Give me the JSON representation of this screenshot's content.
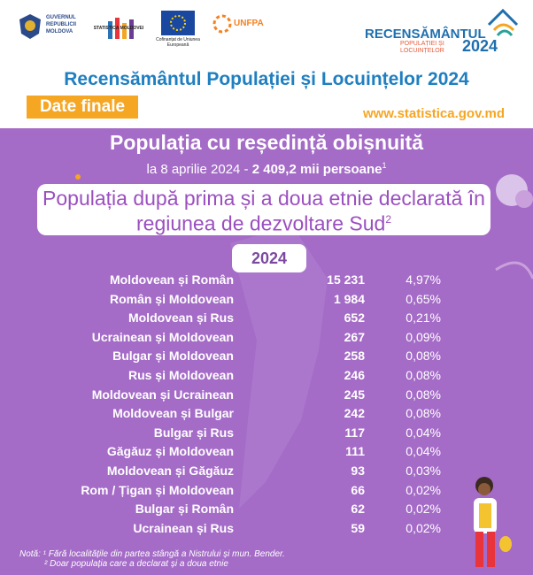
{
  "logos": {
    "gov": "GUVERNUL REPUBLICII MOLDOVA",
    "stat": "STATISTICA MOLDOVEI",
    "eu": "Cofinanțat de Uniunea Europeană",
    "unfpa": "UNFPA",
    "census": [
      "RECENSĂMÂNTUL",
      "POPULAȚIEI ȘI LOCUINȚELOR",
      "2024"
    ]
  },
  "header": {
    "title": "Recensământul Populației și Locuințelor 2024",
    "badge": "Date finale",
    "url": "www.statistica.gov.md"
  },
  "intro": {
    "heading": "Populația cu reședință obișnuită",
    "date": "la 8 aprilie 2024 - ",
    "total": "2 409,2 mii persoane",
    "total_note": "1"
  },
  "panel": {
    "title": "Populația după prima și a doua etnie declarată în regiunea de dezvoltare Sud",
    "title_note": "2",
    "year": "2024"
  },
  "table": {
    "rows": [
      [
        "Moldovean și Român",
        "15 231",
        "4,97%"
      ],
      [
        "Român și Moldovean",
        "1 984",
        "0,65%"
      ],
      [
        "Moldovean și Rus",
        "652",
        "0,21%"
      ],
      [
        "Ucrainean și Moldovean",
        "267",
        "0,09%"
      ],
      [
        "Bulgar și Moldovean",
        "258",
        "0,08%"
      ],
      [
        "Rus și Moldovean",
        "246",
        "0,08%"
      ],
      [
        "Moldovean și Ucrainean",
        "245",
        "0,08%"
      ],
      [
        "Moldovean și Bulgar",
        "242",
        "0,08%"
      ],
      [
        "Bulgar și Rus",
        "117",
        "0,04%"
      ],
      [
        "Găgăuz și Moldovean",
        "111",
        "0,04%"
      ],
      [
        "Moldovean și Găgăuz",
        "93",
        "0,03%"
      ],
      [
        "Rom / Țigan și Moldovean",
        "66",
        "0,02%"
      ],
      [
        "Bulgar și Român",
        "62",
        "0,02%"
      ],
      [
        "Ucrainean și Rus",
        "59",
        "0,02%"
      ]
    ]
  },
  "notes": [
    "Notă: ¹ Fără localitățile din partea stângă a Nistrului și mun. Bender.",
    "² Doar populația care a declarat și a doua etnie"
  ]
}
